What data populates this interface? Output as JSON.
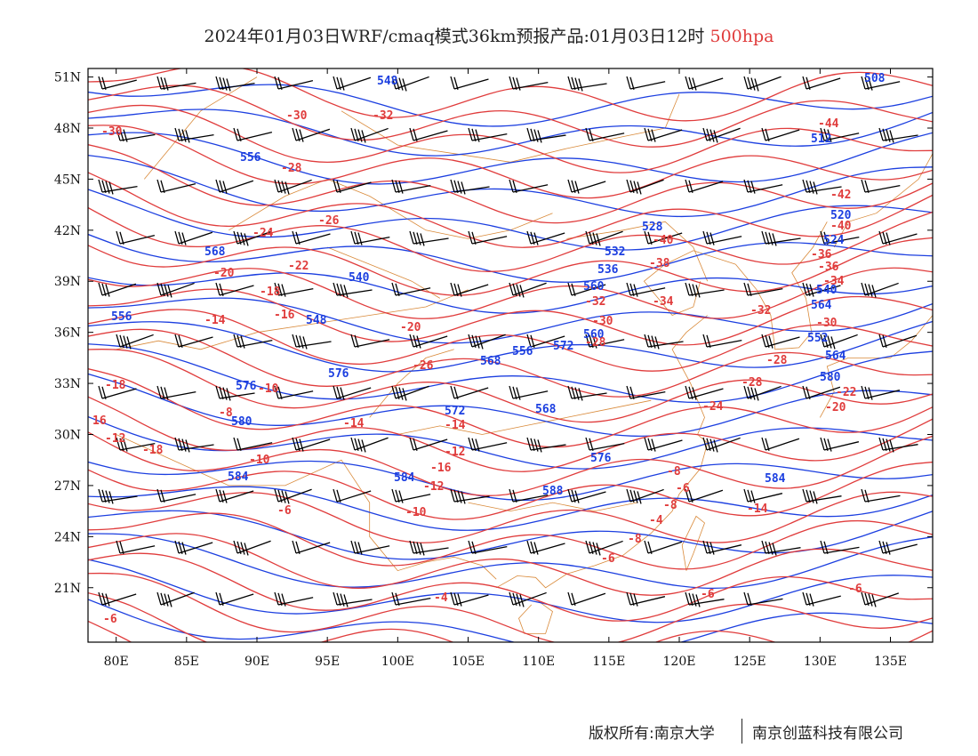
{
  "title": {
    "main": "2024年01月03日WRF/cmaq模式36km预报产品:01月03日12时",
    "level": "500hpa"
  },
  "colors": {
    "height_contour": "#1c3fe0",
    "temperature_contour": "#e03c3c",
    "coastline": "#d98a3a",
    "wind_barb": "#000000"
  },
  "map": {
    "lon_range": [
      78,
      138
    ],
    "lat_range": [
      17.8,
      51.5
    ],
    "x_ticks": [
      "80E",
      "85E",
      "90E",
      "95E",
      "100E",
      "105E",
      "110E",
      "115E",
      "120E",
      "125E",
      "130E",
      "135E"
    ],
    "y_ticks": [
      "51N",
      "48N",
      "45N",
      "42N",
      "39N",
      "36N",
      "33N",
      "30N",
      "27N",
      "24N",
      "21N"
    ],
    "height_labels": [
      "548",
      "508",
      "512",
      "556",
      "520",
      "528",
      "532",
      "524",
      "536",
      "540",
      "560",
      "568",
      "540",
      "564",
      "548",
      "552",
      "556",
      "560",
      "564",
      "556",
      "572",
      "568",
      "576",
      "576",
      "572",
      "568",
      "580",
      "580",
      "576",
      "584",
      "588",
      "584",
      "584"
    ],
    "temperature_labels": [
      "-30",
      "-32",
      "-30",
      "-44",
      "-28",
      "-42",
      "-26",
      "-40",
      "-24",
      "-40",
      "-38",
      "-36",
      "-22",
      "-36",
      "-34",
      "-20",
      "-18",
      "-32",
      "-34",
      "-30",
      "-16",
      "-14",
      "-32",
      "-30",
      "-20",
      "-28",
      "-28",
      "-28",
      "-26",
      "-18",
      "-10",
      "-22",
      "-20",
      "-8",
      "-24",
      "16",
      "-12",
      "-14",
      "-14",
      "-12",
      "-18",
      "-8",
      "-10",
      "-16",
      "-6",
      "-14",
      "-12",
      "-8",
      "-4",
      "-6",
      "-10",
      "-8",
      "-6",
      "-6",
      "-4",
      "-6",
      "-6"
    ]
  },
  "footer": {
    "copyright": "版权所有:南京大学",
    "company": "南京创蓝科技有限公司"
  }
}
